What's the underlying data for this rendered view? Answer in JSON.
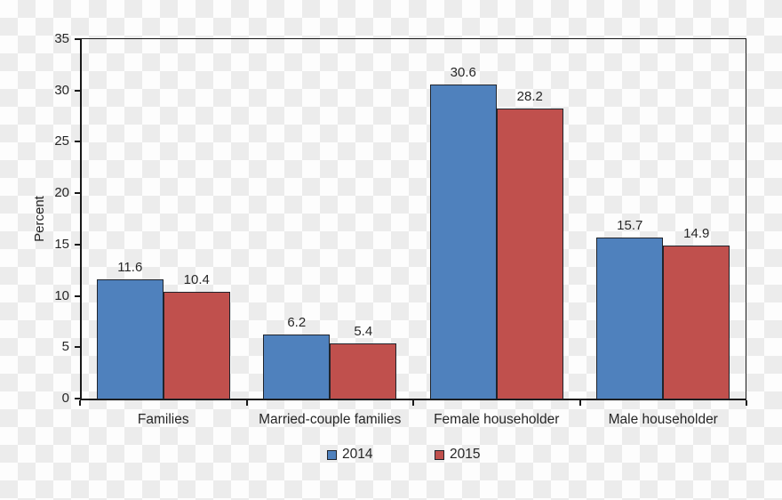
{
  "chart_data": {
    "type": "bar",
    "title": "",
    "xlabel": "",
    "ylabel": "Percent",
    "categories": [
      "Families",
      "Married-couple families",
      "Female householder",
      "Male householder"
    ],
    "series": [
      {
        "name": "2014",
        "color": "#4F81BD",
        "values": [
          11.6,
          6.2,
          30.6,
          15.7
        ]
      },
      {
        "name": "2015",
        "color": "#C0504D",
        "values": [
          10.4,
          5.4,
          28.2,
          14.9
        ]
      }
    ],
    "ylim": [
      0,
      35
    ],
    "yticks": [
      0,
      5,
      10,
      15,
      20,
      25,
      30,
      35
    ],
    "grid": false,
    "value_labels_decimals": 1,
    "legend_position": "bottom"
  }
}
